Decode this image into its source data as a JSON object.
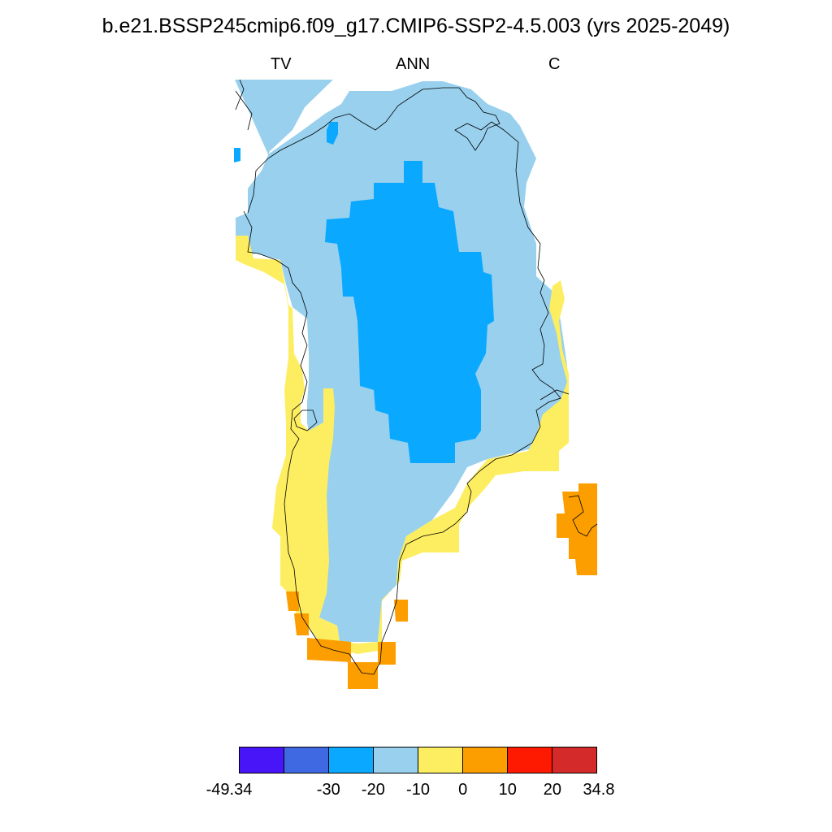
{
  "title": "b.e21.BSSP245cmip6.f09_g17.CMIP6-SSP2-4.5.003 (yrs 2025-2049)",
  "subtitles": {
    "left": "TV",
    "center": "ANN",
    "right": "C"
  },
  "colorbar": {
    "colors": [
      "#4814f8",
      "#3f69e3",
      "#0aa9ff",
      "#98d0ee",
      "#fdee61",
      "#fd9e00",
      "#fd1a00",
      "#d42a2a"
    ],
    "labels": [
      "-49.34",
      "-30",
      "-20",
      "-10",
      "0",
      "10",
      "20",
      "34.8"
    ]
  },
  "chart_data": {
    "type": "heatmap",
    "variable": "TV",
    "season": "ANN",
    "units": "C",
    "region": "Greenland",
    "levels": [
      -49.34,
      -30,
      -20,
      -10,
      0,
      10,
      20,
      34.8
    ],
    "field_classes": {
      "interior_ice_sheet": "-30 to -20",
      "ice_sheet_margin": "-20 to -10",
      "west_and_southeast_coast": "-10 to 0",
      "southern_tip_and_east_coast_patch": "0 to 10"
    }
  }
}
